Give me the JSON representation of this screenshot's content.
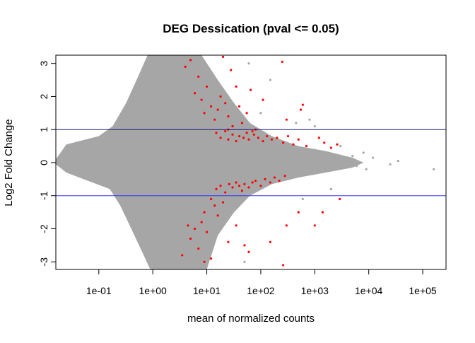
{
  "chart_data": {
    "type": "scatter",
    "title": "DEG Dessication  (pval <= 0.05)",
    "xlabel": "mean of normalized counts",
    "ylabel": "Log2 Fold Change",
    "x_scale": "log10",
    "xlim": [
      0.016,
      270000
    ],
    "ylim": [
      -3.23,
      3.25
    ],
    "x_ticks": [
      0.1,
      1,
      10,
      100,
      1000,
      10000,
      100000
    ],
    "x_tick_labels": [
      "1e-01",
      "1e+00",
      "1e+01",
      "1e+02",
      "1e+03",
      "1e+04",
      "1e+05"
    ],
    "y_ticks": [
      3,
      2,
      1,
      0,
      -1,
      -2,
      -3
    ],
    "y_tick_labels": [
      "3",
      "2",
      "1",
      "0",
      "-1",
      "-2",
      "-3"
    ],
    "grid": false,
    "hlines": [
      {
        "y": 1,
        "color": "#1a1a80"
      },
      {
        "y": -1,
        "color": "#3333ff"
      }
    ],
    "colors": {
      "nonsignificant": "#a6a6a6",
      "significant": "#ff0000"
    },
    "nonsignificant_cloud_envelope": [
      [
        0.016,
        0.1
      ],
      [
        0.025,
        0.55
      ],
      [
        0.1,
        0.8
      ],
      [
        0.18,
        1.1
      ],
      [
        0.32,
        1.8
      ],
      [
        0.5,
        2.5
      ],
      [
        0.8,
        3.25
      ],
      [
        8,
        3.25
      ],
      [
        16,
        2.5
      ],
      [
        32,
        1.8
      ],
      [
        63,
        1.2
      ],
      [
        160,
        0.8
      ],
      [
        500,
        0.5
      ],
      [
        1600,
        0.35
      ],
      [
        5000,
        0.15
      ],
      [
        8000,
        0
      ],
      [
        5000,
        -0.15
      ],
      [
        1600,
        -0.3
      ],
      [
        500,
        -0.45
      ],
      [
        160,
        -0.65
      ],
      [
        63,
        -1.0
      ],
      [
        32,
        -1.5
      ],
      [
        16,
        -2.2
      ],
      [
        10,
        -3.23
      ],
      [
        0.9,
        -3.23
      ],
      [
        0.4,
        -2.0
      ],
      [
        0.25,
        -1.3
      ],
      [
        0.16,
        -0.8
      ],
      [
        0.063,
        -0.55
      ],
      [
        0.025,
        -0.3
      ],
      [
        0.016,
        -0.05
      ]
    ],
    "nonsignificant_points": [
      [
        25000,
        -0.05
      ],
      [
        35000,
        0.05
      ],
      [
        160000,
        -0.2
      ],
      [
        6000,
        -0.1
      ],
      [
        5000,
        0.2
      ],
      [
        3000,
        0.5
      ],
      [
        800,
        1.3
      ],
      [
        150,
        2.5
      ],
      [
        100,
        1.5
      ],
      [
        60,
        3.0
      ],
      [
        450,
        1.2
      ],
      [
        600,
        -1.1
      ],
      [
        2000,
        -0.8
      ],
      [
        1000,
        1.1
      ],
      [
        8000,
        0.3
      ],
      [
        50,
        -3.0
      ],
      [
        3000,
        0.2
      ],
      [
        0.03,
        0.55
      ],
      [
        0.04,
        0.55
      ],
      [
        0.05,
        0.55
      ],
      [
        0.025,
        0.1
      ],
      [
        0.035,
        0.1
      ],
      [
        12000,
        0.15
      ],
      [
        9000,
        -0.2
      ]
    ],
    "significant_points": [
      [
        4,
        2.9
      ],
      [
        5,
        3.1
      ],
      [
        6,
        2.1
      ],
      [
        7,
        2.6
      ],
      [
        8,
        1.9
      ],
      [
        9,
        1.5
      ],
      [
        10,
        2.3
      ],
      [
        12,
        1.7
      ],
      [
        14,
        1.3
      ],
      [
        16,
        1.6
      ],
      [
        18,
        2.0
      ],
      [
        20,
        3.2
      ],
      [
        22,
        1.8
      ],
      [
        25,
        1.4
      ],
      [
        28,
        2.8
      ],
      [
        30,
        1.1
      ],
      [
        35,
        2.3
      ],
      [
        40,
        1.7
      ],
      [
        45,
        1.2
      ],
      [
        55,
        1.5
      ],
      [
        65,
        2.2
      ],
      [
        80,
        1.0
      ],
      [
        110,
        1.9
      ],
      [
        250,
        3.05
      ],
      [
        300,
        1.3
      ],
      [
        550,
        1.6
      ],
      [
        600,
        1.75
      ],
      [
        15,
        0.9
      ],
      [
        18,
        0.75
      ],
      [
        22,
        0.95
      ],
      [
        25,
        0.7
      ],
      [
        30,
        0.85
      ],
      [
        35,
        0.65
      ],
      [
        40,
        0.8
      ],
      [
        48,
        0.75
      ],
      [
        55,
        0.9
      ],
      [
        60,
        0.7
      ],
      [
        75,
        0.85
      ],
      [
        90,
        0.75
      ],
      [
        110,
        0.65
      ],
      [
        130,
        0.8
      ],
      [
        160,
        0.7
      ],
      [
        200,
        0.75
      ],
      [
        260,
        0.6
      ],
      [
        320,
        0.8
      ],
      [
        400,
        0.55
      ],
      [
        500,
        0.7
      ],
      [
        700,
        0.5
      ],
      [
        1200,
        0.75
      ],
      [
        1500,
        0.6
      ],
      [
        2000,
        0.45
      ],
      [
        2600,
        0.55
      ],
      [
        25,
        1.0
      ],
      [
        70,
        0.95
      ],
      [
        15,
        -0.8
      ],
      [
        18,
        -0.7
      ],
      [
        22,
        -0.9
      ],
      [
        26,
        -0.65
      ],
      [
        30,
        -0.75
      ],
      [
        35,
        -0.6
      ],
      [
        40,
        -0.7
      ],
      [
        45,
        -0.85
      ],
      [
        50,
        -0.65
      ],
      [
        60,
        -0.75
      ],
      [
        70,
        -0.6
      ],
      [
        80,
        -0.55
      ],
      [
        100,
        -0.7
      ],
      [
        120,
        -0.5
      ],
      [
        150,
        -0.6
      ],
      [
        180,
        -0.45
      ],
      [
        220,
        -0.55
      ],
      [
        280,
        -0.4
      ],
      [
        12,
        -1.1
      ],
      [
        14,
        -1.3
      ],
      [
        9,
        -1.5
      ],
      [
        8,
        -1.8
      ],
      [
        6,
        -2.0
      ],
      [
        5,
        -2.3
      ],
      [
        4.5,
        -1.9
      ],
      [
        7,
        -2.6
      ],
      [
        10,
        -2.1
      ],
      [
        12,
        -2.9
      ],
      [
        16,
        -1.6
      ],
      [
        20,
        -1.2
      ],
      [
        25,
        -2.4
      ],
      [
        35,
        -1.9
      ],
      [
        50,
        -2.5
      ],
      [
        60,
        -2.7
      ],
      [
        150,
        -2.4
      ],
      [
        300,
        -1.9
      ],
      [
        500,
        -1.5
      ],
      [
        1000,
        -1.9
      ],
      [
        1400,
        -1.5
      ],
      [
        2900,
        -1.1
      ],
      [
        260,
        -3.1
      ],
      [
        3.5,
        -2.8
      ],
      [
        9,
        -3.0
      ]
    ]
  }
}
